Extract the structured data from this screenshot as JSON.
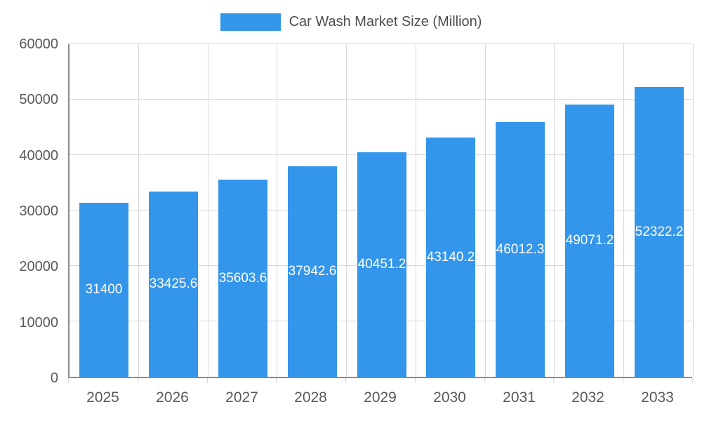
{
  "colors": {
    "bar": "#3496EB",
    "grid": "#D8D8D8",
    "axis": "#8A8A8A",
    "tick_text": "#595959",
    "legend_text": "#4D4D4D",
    "bar_label_text": "#FFFFFF"
  },
  "chart_data": {
    "type": "bar",
    "title": "Car Wash Market Size (Million)",
    "categories": [
      "2025",
      "2026",
      "2027",
      "2028",
      "2029",
      "2030",
      "2031",
      "2032",
      "2033"
    ],
    "values": [
      31400,
      33425.6,
      35603.6,
      37942.6,
      40451.2,
      43140.2,
      46012.3,
      49071.2,
      52322.2
    ],
    "bar_labels": [
      "31400",
      "33425.6",
      "35603.6",
      "37942.6",
      "40451.2",
      "43140.2",
      "46012.3",
      "49071.2",
      "52322.2"
    ],
    "xlabel": "",
    "ylabel": "",
    "ylim": [
      0,
      60000
    ],
    "yticks": [
      0,
      10000,
      20000,
      30000,
      40000,
      50000,
      60000
    ],
    "ytick_labels": [
      "0",
      "10000",
      "20000",
      "30000",
      "40000",
      "50000",
      "60000"
    ],
    "grid": true,
    "legend_position": "top"
  }
}
